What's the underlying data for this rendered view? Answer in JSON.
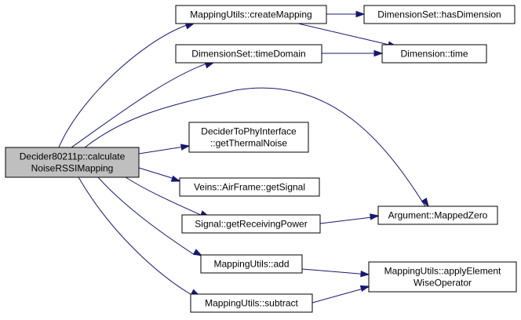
{
  "diagram": {
    "type": "call-graph",
    "nodes": [
      {
        "id": "root",
        "lines": [
          "Decider80211p::calculate",
          "NoiseRSSIMapping"
        ],
        "highlight": true
      },
      {
        "id": "create_mapping",
        "lines": [
          "MappingUtils::createMapping"
        ]
      },
      {
        "id": "has_dimension",
        "lines": [
          "DimensionSet::hasDimension"
        ]
      },
      {
        "id": "time_domain",
        "lines": [
          "DimensionSet::timeDomain"
        ]
      },
      {
        "id": "dim_time",
        "lines": [
          "Dimension::time"
        ]
      },
      {
        "id": "thermal_noise",
        "lines": [
          "DeciderToPhyInterface",
          "::getThermalNoise"
        ]
      },
      {
        "id": "get_signal",
        "lines": [
          "Veins::AirFrame::getSignal"
        ]
      },
      {
        "id": "receiving_power",
        "lines": [
          "Signal::getReceivingPower"
        ]
      },
      {
        "id": "mapped_zero",
        "lines": [
          "Argument::MappedZero"
        ]
      },
      {
        "id": "mu_add",
        "lines": [
          "MappingUtils::add"
        ]
      },
      {
        "id": "apply_op",
        "lines": [
          "MappingUtils::applyElement",
          "WiseOperator"
        ]
      },
      {
        "id": "mu_subtract",
        "lines": [
          "MappingUtils::subtract"
        ]
      }
    ],
    "edges": [
      {
        "from": "root",
        "to": "create_mapping"
      },
      {
        "from": "root",
        "to": "time_domain"
      },
      {
        "from": "root",
        "to": "mapped_zero"
      },
      {
        "from": "root",
        "to": "thermal_noise"
      },
      {
        "from": "root",
        "to": "get_signal"
      },
      {
        "from": "root",
        "to": "receiving_power"
      },
      {
        "from": "root",
        "to": "mu_add"
      },
      {
        "from": "root",
        "to": "mu_subtract"
      },
      {
        "from": "create_mapping",
        "to": "has_dimension"
      },
      {
        "from": "create_mapping",
        "to": "dim_time"
      },
      {
        "from": "time_domain",
        "to": "dim_time"
      },
      {
        "from": "receiving_power",
        "to": "mapped_zero"
      },
      {
        "from": "mu_add",
        "to": "apply_op"
      },
      {
        "from": "mu_subtract",
        "to": "apply_op"
      }
    ],
    "colors": {
      "edge": "#191970",
      "root_fill": "#bfbfbf",
      "node_fill": "#ffffff",
      "border": "#000000"
    }
  }
}
